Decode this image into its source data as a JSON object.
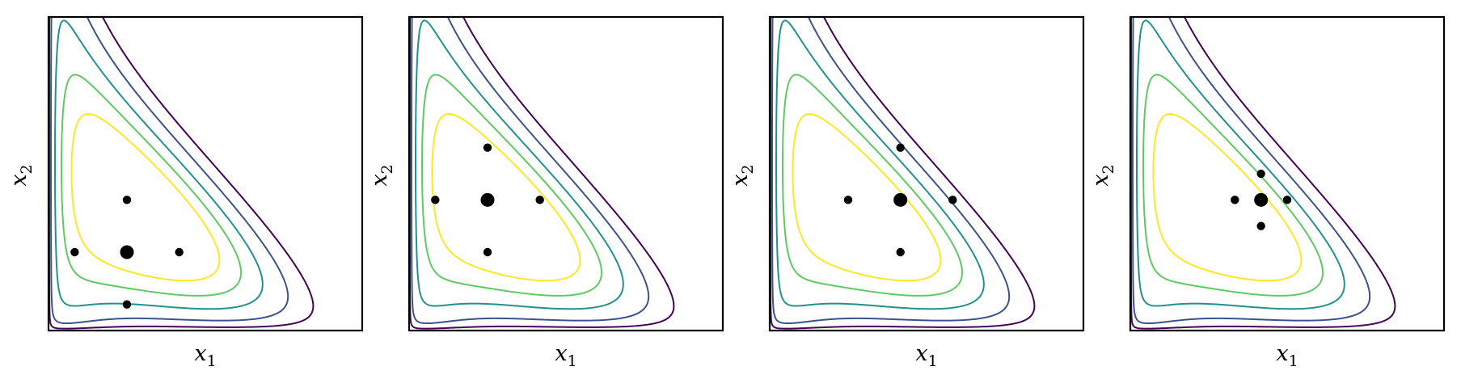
{
  "chart_data": {
    "type": "scatter",
    "xlabel": "x",
    "xlabel_sub": "1",
    "ylabel": "x",
    "ylabel_sub": "2",
    "contour_colors": [
      "#440154",
      "#3b528b",
      "#21918c",
      "#5ec962",
      "#fde725"
    ],
    "contour_levels": [
      0.015,
      0.05,
      0.13,
      0.25,
      0.42
    ],
    "xlim": [
      0,
      6
    ],
    "ylim": [
      0,
      6
    ],
    "grid": false,
    "legend": "none",
    "panels": [
      {
        "center": {
          "x": 1.5,
          "y": 1.5
        },
        "points": [
          {
            "x": 1.5,
            "y": 2.5
          },
          {
            "x": 0.5,
            "y": 1.5
          },
          {
            "x": 2.5,
            "y": 1.5
          },
          {
            "x": 1.5,
            "y": 0.5
          }
        ]
      },
      {
        "center": {
          "x": 1.5,
          "y": 2.5
        },
        "points": [
          {
            "x": 1.5,
            "y": 3.5
          },
          {
            "x": 0.5,
            "y": 2.5
          },
          {
            "x": 2.5,
            "y": 2.5
          },
          {
            "x": 1.5,
            "y": 1.5
          }
        ]
      },
      {
        "center": {
          "x": 2.5,
          "y": 2.5
        },
        "points": [
          {
            "x": 2.5,
            "y": 3.5
          },
          {
            "x": 1.5,
            "y": 2.5
          },
          {
            "x": 3.5,
            "y": 2.5
          },
          {
            "x": 2.5,
            "y": 1.5
          }
        ]
      },
      {
        "center": {
          "x": 2.5,
          "y": 2.5
        },
        "points": [
          {
            "x": 2.5,
            "y": 3.0
          },
          {
            "x": 2.0,
            "y": 2.5
          },
          {
            "x": 3.0,
            "y": 2.5
          },
          {
            "x": 2.5,
            "y": 2.0
          }
        ]
      }
    ]
  }
}
